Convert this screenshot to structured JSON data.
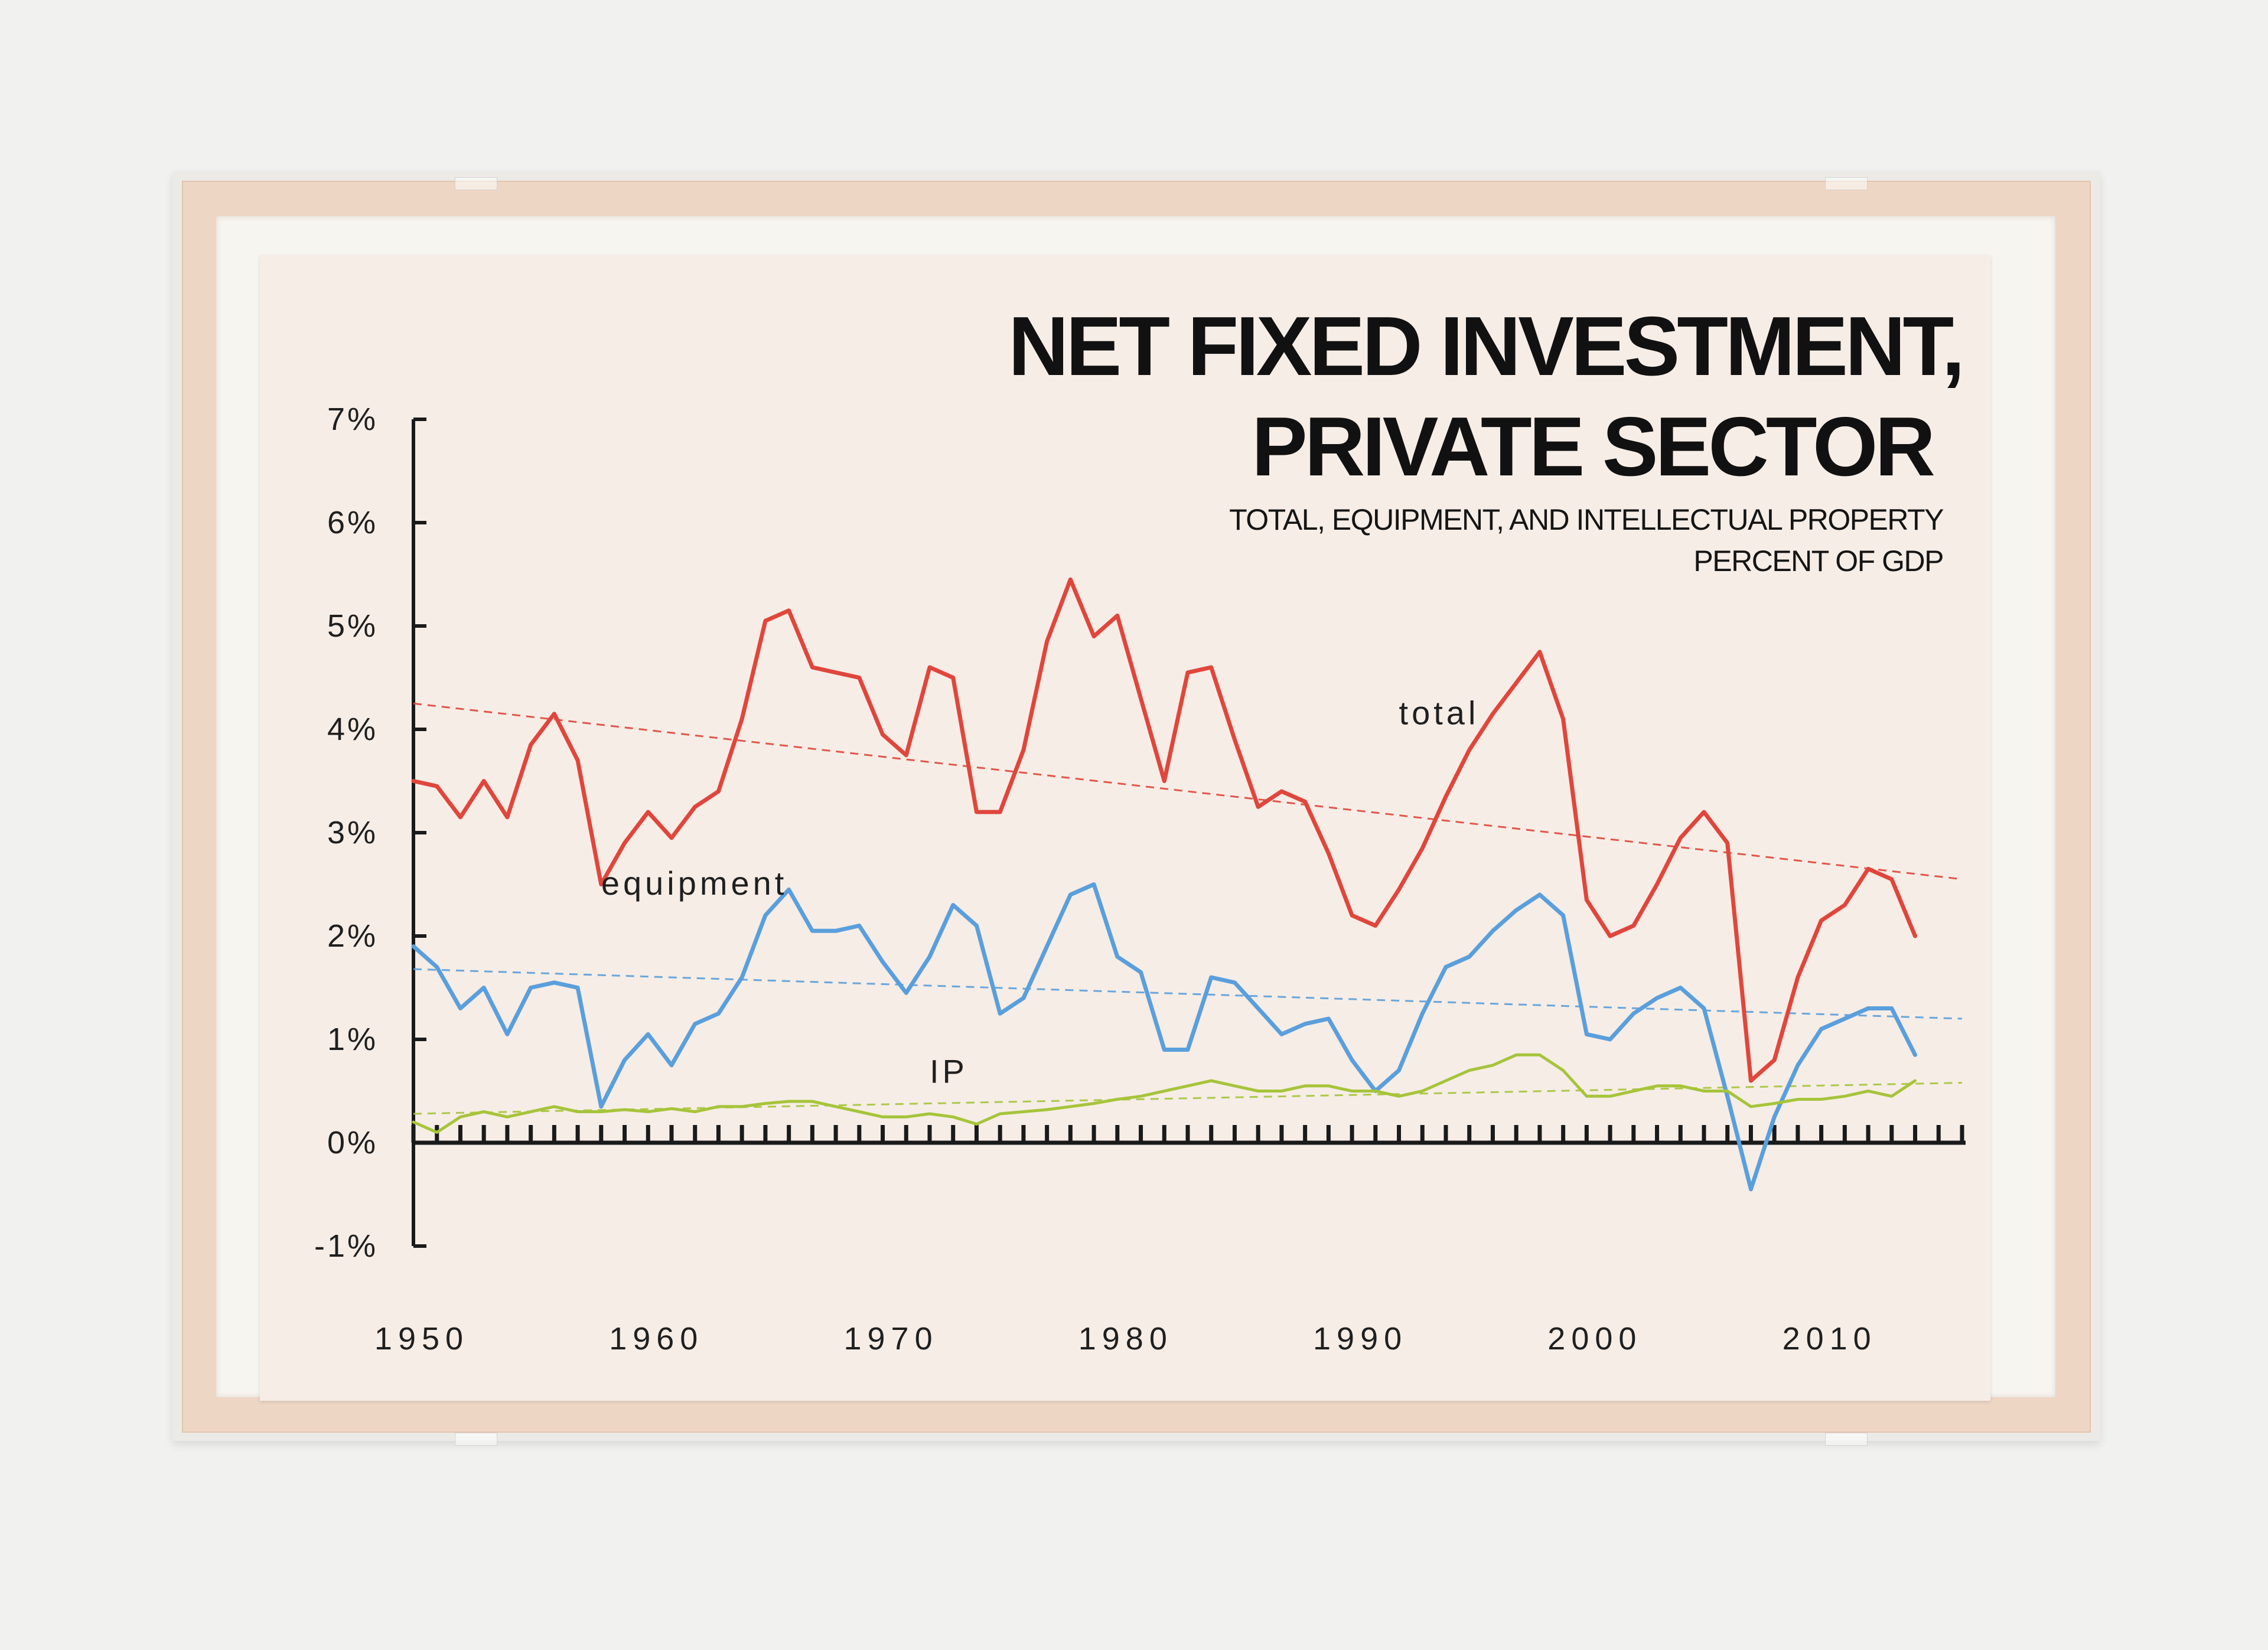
{
  "chart_data": {
    "type": "line",
    "title_line1": "NET FIXED INVESTMENT,",
    "title_line2": "PRIVATE SECTOR",
    "subtitle_line1": "TOTAL, EQUIPMENT, AND INTELLECTUAL PROPERTY",
    "subtitle_line2": "PERCENT OF GDP",
    "ylim": [
      -1,
      7
    ],
    "xlim": [
      1950,
      2016
    ],
    "y_ticks": [
      {
        "value": 7,
        "label": "7%"
      },
      {
        "value": 6,
        "label": "6%"
      },
      {
        "value": 5,
        "label": "5%"
      },
      {
        "value": 4,
        "label": "4%"
      },
      {
        "value": 3,
        "label": "3%"
      },
      {
        "value": 2,
        "label": "2%"
      },
      {
        "value": 1,
        "label": "1%"
      },
      {
        "value": 0,
        "label": "0%"
      },
      {
        "value": -1,
        "label": "-1%"
      }
    ],
    "x_ticks": [
      {
        "value": 1950,
        "label": "1950"
      },
      {
        "value": 1960,
        "label": "1960"
      },
      {
        "value": 1970,
        "label": "1970"
      },
      {
        "value": 1980,
        "label": "1980"
      },
      {
        "value": 1990,
        "label": "1990"
      },
      {
        "value": 2000,
        "label": "2000"
      },
      {
        "value": 2010,
        "label": "2010"
      }
    ],
    "series": [
      {
        "name": "total",
        "color": "#e0463c",
        "label_pos": [
          1992,
          4.05
        ],
        "trend": [
          [
            1950,
            4.25
          ],
          [
            2016,
            2.55
          ]
        ],
        "points": [
          [
            1950,
            3.5
          ],
          [
            1951,
            3.45
          ],
          [
            1952,
            3.15
          ],
          [
            1953,
            3.5
          ],
          [
            1954,
            3.15
          ],
          [
            1955,
            3.85
          ],
          [
            1956,
            4.15
          ],
          [
            1957,
            3.7
          ],
          [
            1958,
            2.5
          ],
          [
            1959,
            2.9
          ],
          [
            1960,
            3.2
          ],
          [
            1961,
            2.95
          ],
          [
            1962,
            3.25
          ],
          [
            1963,
            3.4
          ],
          [
            1964,
            4.1
          ],
          [
            1965,
            5.05
          ],
          [
            1966,
            5.15
          ],
          [
            1967,
            4.6
          ],
          [
            1968,
            4.55
          ],
          [
            1969,
            4.5
          ],
          [
            1970,
            3.95
          ],
          [
            1971,
            3.75
          ],
          [
            1972,
            4.6
          ],
          [
            1973,
            4.5
          ],
          [
            1974,
            3.2
          ],
          [
            1975,
            3.2
          ],
          [
            1976,
            3.8
          ],
          [
            1977,
            4.85
          ],
          [
            1978,
            5.45
          ],
          [
            1979,
            4.9
          ],
          [
            1980,
            5.1
          ],
          [
            1981,
            4.3
          ],
          [
            1982,
            3.5
          ],
          [
            1983,
            4.55
          ],
          [
            1984,
            4.6
          ],
          [
            1985,
            3.9
          ],
          [
            1986,
            3.25
          ],
          [
            1987,
            3.4
          ],
          [
            1988,
            3.3
          ],
          [
            1989,
            2.8
          ],
          [
            1990,
            2.2
          ],
          [
            1991,
            2.1
          ],
          [
            1992,
            2.45
          ],
          [
            1993,
            2.85
          ],
          [
            1994,
            3.35
          ],
          [
            1995,
            3.8
          ],
          [
            1996,
            4.15
          ],
          [
            1997,
            4.45
          ],
          [
            1998,
            4.75
          ],
          [
            1999,
            4.1
          ],
          [
            2000,
            2.35
          ],
          [
            2001,
            2.0
          ],
          [
            2002,
            2.1
          ],
          [
            2003,
            2.5
          ],
          [
            2004,
            2.95
          ],
          [
            2005,
            3.2
          ],
          [
            2006,
            2.9
          ],
          [
            2007,
            0.6
          ],
          [
            2008,
            0.8
          ],
          [
            2009,
            1.6
          ],
          [
            2010,
            2.15
          ],
          [
            2011,
            2.3
          ],
          [
            2012,
            2.65
          ],
          [
            2013,
            2.55
          ],
          [
            2014,
            2.0
          ]
        ]
      },
      {
        "name": "equipment",
        "color": "#5a9fdc",
        "label_pos": [
          1958,
          2.4
        ],
        "trend": [
          [
            1950,
            1.68
          ],
          [
            2016,
            1.2
          ]
        ],
        "points": [
          [
            1950,
            1.9
          ],
          [
            1951,
            1.7
          ],
          [
            1952,
            1.3
          ],
          [
            1953,
            1.5
          ],
          [
            1954,
            1.05
          ],
          [
            1955,
            1.5
          ],
          [
            1956,
            1.55
          ],
          [
            1957,
            1.5
          ],
          [
            1958,
            0.35
          ],
          [
            1959,
            0.8
          ],
          [
            1960,
            1.05
          ],
          [
            1961,
            0.75
          ],
          [
            1962,
            1.15
          ],
          [
            1963,
            1.25
          ],
          [
            1964,
            1.6
          ],
          [
            1965,
            2.2
          ],
          [
            1966,
            2.45
          ],
          [
            1967,
            2.05
          ],
          [
            1968,
            2.05
          ],
          [
            1969,
            2.1
          ],
          [
            1970,
            1.75
          ],
          [
            1971,
            1.45
          ],
          [
            1972,
            1.8
          ],
          [
            1973,
            2.3
          ],
          [
            1974,
            2.1
          ],
          [
            1975,
            1.25
          ],
          [
            1976,
            1.4
          ],
          [
            1977,
            1.9
          ],
          [
            1978,
            2.4
          ],
          [
            1979,
            2.5
          ],
          [
            1980,
            1.8
          ],
          [
            1981,
            1.65
          ],
          [
            1982,
            0.9
          ],
          [
            1983,
            0.9
          ],
          [
            1984,
            1.6
          ],
          [
            1985,
            1.55
          ],
          [
            1986,
            1.3
          ],
          [
            1987,
            1.05
          ],
          [
            1988,
            1.15
          ],
          [
            1989,
            1.2
          ],
          [
            1990,
            0.8
          ],
          [
            1991,
            0.5
          ],
          [
            1992,
            0.7
          ],
          [
            1993,
            1.25
          ],
          [
            1994,
            1.7
          ],
          [
            1995,
            1.8
          ],
          [
            1996,
            2.05
          ],
          [
            1997,
            2.25
          ],
          [
            1998,
            2.4
          ],
          [
            1999,
            2.2
          ],
          [
            2000,
            1.05
          ],
          [
            2001,
            1.0
          ],
          [
            2002,
            1.25
          ],
          [
            2003,
            1.4
          ],
          [
            2004,
            1.5
          ],
          [
            2005,
            1.3
          ],
          [
            2006,
            0.45
          ],
          [
            2007,
            -0.45
          ],
          [
            2008,
            0.25
          ],
          [
            2009,
            0.75
          ],
          [
            2010,
            1.1
          ],
          [
            2011,
            1.2
          ],
          [
            2012,
            1.3
          ],
          [
            2013,
            1.3
          ],
          [
            2014,
            0.85
          ]
        ]
      },
      {
        "name": "IP",
        "color": "#a6c43a",
        "label_pos": [
          1972,
          0.58
        ],
        "trend": [
          [
            1950,
            0.28
          ],
          [
            2016,
            0.58
          ]
        ],
        "points": [
          [
            1950,
            0.2
          ],
          [
            1951,
            0.1
          ],
          [
            1952,
            0.25
          ],
          [
            1953,
            0.3
          ],
          [
            1954,
            0.25
          ],
          [
            1955,
            0.3
          ],
          [
            1956,
            0.35
          ],
          [
            1957,
            0.3
          ],
          [
            1958,
            0.3
          ],
          [
            1959,
            0.32
          ],
          [
            1960,
            0.3
          ],
          [
            1961,
            0.33
          ],
          [
            1962,
            0.3
          ],
          [
            1963,
            0.35
          ],
          [
            1964,
            0.35
          ],
          [
            1965,
            0.38
          ],
          [
            1966,
            0.4
          ],
          [
            1967,
            0.4
          ],
          [
            1968,
            0.35
          ],
          [
            1969,
            0.3
          ],
          [
            1970,
            0.25
          ],
          [
            1971,
            0.25
          ],
          [
            1972,
            0.28
          ],
          [
            1973,
            0.25
          ],
          [
            1974,
            0.18
          ],
          [
            1975,
            0.28
          ],
          [
            1976,
            0.3
          ],
          [
            1977,
            0.32
          ],
          [
            1978,
            0.35
          ],
          [
            1979,
            0.38
          ],
          [
            1980,
            0.42
          ],
          [
            1981,
            0.45
          ],
          [
            1982,
            0.5
          ],
          [
            1983,
            0.55
          ],
          [
            1984,
            0.6
          ],
          [
            1985,
            0.55
          ],
          [
            1986,
            0.5
          ],
          [
            1987,
            0.5
          ],
          [
            1988,
            0.55
          ],
          [
            1989,
            0.55
          ],
          [
            1990,
            0.5
          ],
          [
            1991,
            0.5
          ],
          [
            1992,
            0.45
          ],
          [
            1993,
            0.5
          ],
          [
            1994,
            0.6
          ],
          [
            1995,
            0.7
          ],
          [
            1996,
            0.75
          ],
          [
            1997,
            0.85
          ],
          [
            1998,
            0.85
          ],
          [
            1999,
            0.7
          ],
          [
            2000,
            0.45
          ],
          [
            2001,
            0.45
          ],
          [
            2002,
            0.5
          ],
          [
            2003,
            0.55
          ],
          [
            2004,
            0.55
          ],
          [
            2005,
            0.5
          ],
          [
            2006,
            0.5
          ],
          [
            2007,
            0.35
          ],
          [
            2008,
            0.38
          ],
          [
            2009,
            0.42
          ],
          [
            2010,
            0.42
          ],
          [
            2011,
            0.45
          ],
          [
            2012,
            0.5
          ],
          [
            2013,
            0.45
          ],
          [
            2014,
            0.6
          ]
        ]
      }
    ]
  }
}
